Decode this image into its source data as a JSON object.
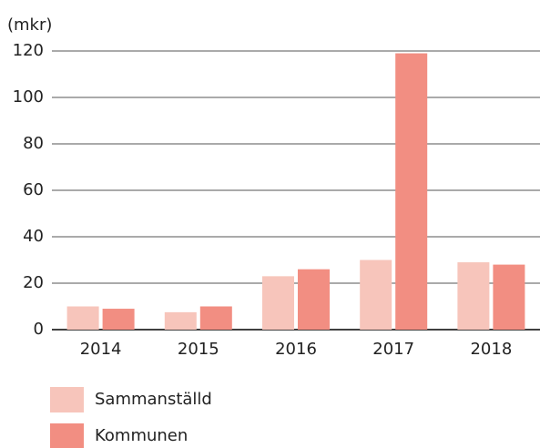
{
  "chart_data": {
    "type": "bar",
    "y_label": "(mkr)",
    "categories": [
      "2014",
      "2015",
      "2016",
      "2017",
      "2018"
    ],
    "series": [
      {
        "name": "Sammanställd",
        "color": "#f7c5bb",
        "values": [
          10,
          7.5,
          23,
          30,
          29
        ]
      },
      {
        "name": "Kommunen",
        "color": "#f28e82",
        "values": [
          9,
          10,
          26,
          119,
          28
        ]
      }
    ],
    "ylim": [
      0,
      120
    ],
    "yticks": [
      0,
      20,
      40,
      60,
      80,
      100,
      120
    ],
    "grid": true
  }
}
